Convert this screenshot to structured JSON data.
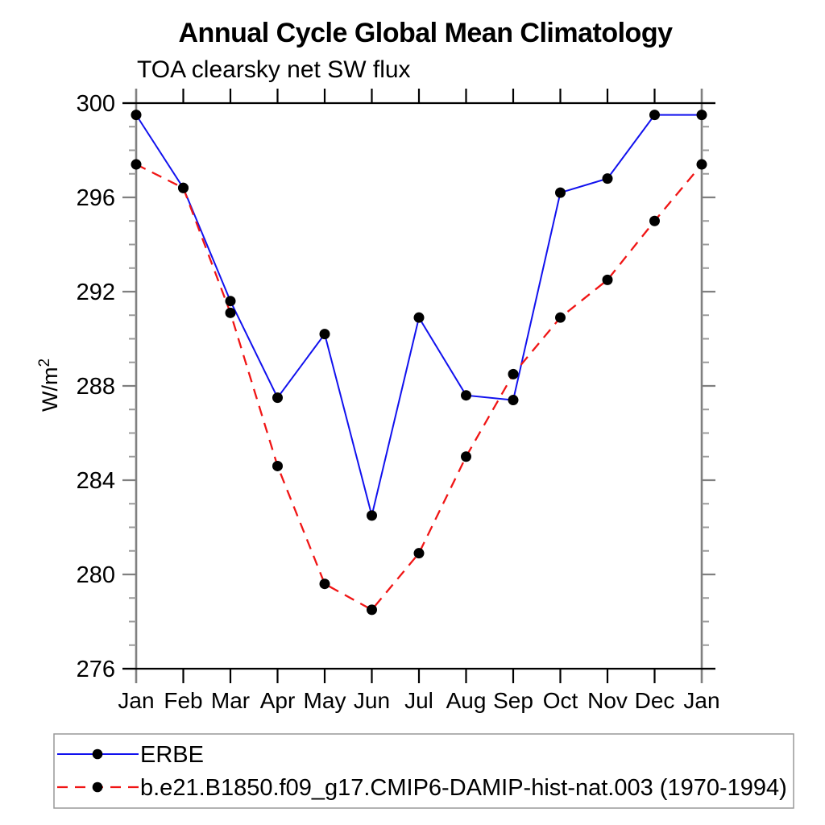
{
  "header": {
    "title": "Annual Cycle Global Mean Climatology",
    "subtitle": "TOA clearsky net SW flux"
  },
  "axes": {
    "y_label_base": "W/m",
    "y_label_exponent": "2",
    "y_tick_labels": [
      "276",
      "280",
      "284",
      "288",
      "292",
      "296",
      "300"
    ],
    "x_tick_labels": [
      "Jan",
      "Feb",
      "Mar",
      "Apr",
      "May",
      "Jun",
      "Jul",
      "Aug",
      "Sep",
      "Oct",
      "Nov",
      "Dec",
      "Jan"
    ]
  },
  "chart_data": {
    "type": "line",
    "title": "Annual Cycle Global Mean Climatology",
    "subtitle": "TOA clearsky net SW flux",
    "x_categories": [
      "Jan",
      "Feb",
      "Mar",
      "Apr",
      "May",
      "Jun",
      "Jul",
      "Aug",
      "Sep",
      "Oct",
      "Nov",
      "Dec",
      "Jan"
    ],
    "ylabel": "W/m²",
    "ylim": [
      276,
      300
    ],
    "y_major_ticks": [
      276,
      280,
      284,
      288,
      292,
      296,
      300
    ],
    "y_minor_step": 1,
    "grid": false,
    "legend_position": "bottom-left-box",
    "series": [
      {
        "name": "ERBE",
        "style": "solid",
        "marker": "black-dot",
        "values": [
          299.5,
          296.4,
          291.6,
          287.5,
          290.2,
          282.5,
          290.9,
          287.6,
          287.4,
          296.2,
          296.8,
          299.5,
          299.5
        ]
      },
      {
        "name": "b.e21.B1850.f09_g17.CMIP6-DAMIP-hist-nat.003 (1970-1994)",
        "style": "dashed",
        "marker": "black-dot",
        "values": [
          297.4,
          296.4,
          291.1,
          284.6,
          279.6,
          278.5,
          280.9,
          285.0,
          288.5,
          290.9,
          292.5,
          295.0,
          297.4
        ]
      }
    ]
  },
  "legend": {
    "entries": [
      {
        "label": "ERBE",
        "style": "solid"
      },
      {
        "label": "b.e21.B1850.f09_g17.CMIP6-DAMIP-hist-nat.003 (1970-1994)",
        "style": "dashed"
      }
    ]
  },
  "colors": {
    "series_solid": "#1111ee",
    "series_dashed": "#f01515",
    "marker": "#000000",
    "frame_black": "#000000",
    "axis_gray": "#808080",
    "minor_tick_gray": "#9b9b9b",
    "legend_border": "#999999"
  }
}
